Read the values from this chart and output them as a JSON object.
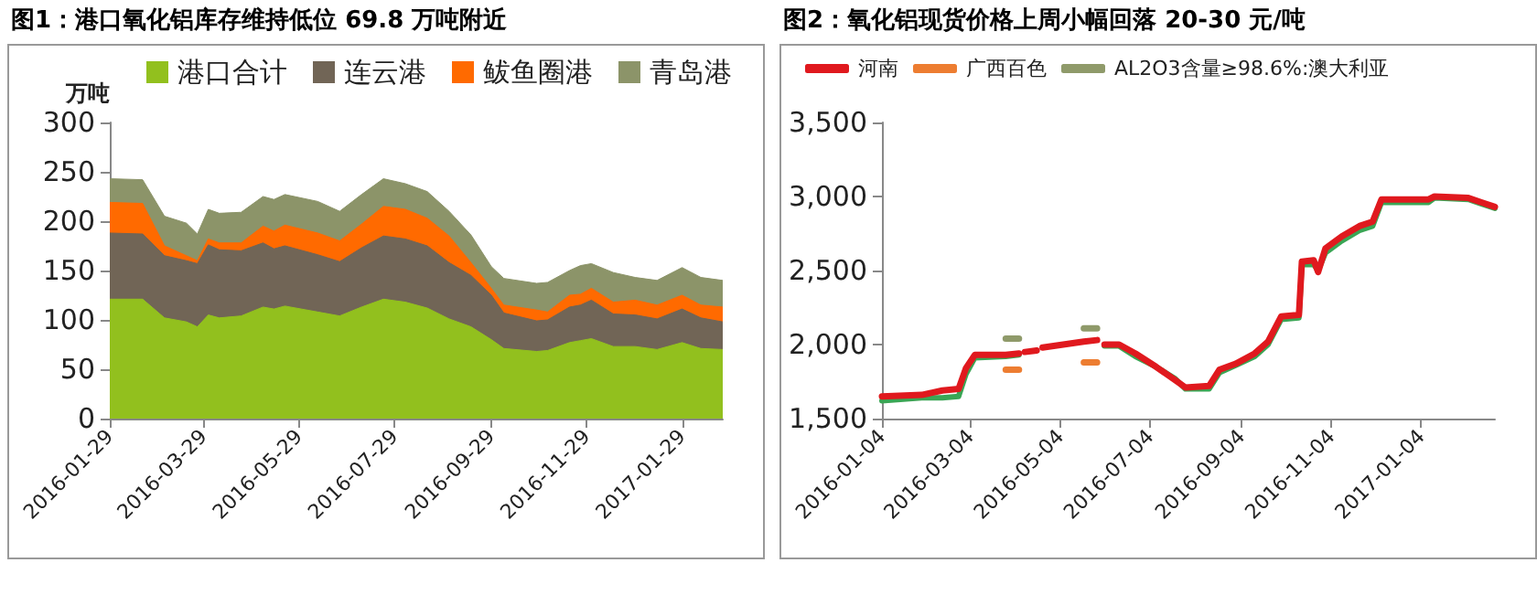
{
  "chart_data": [
    {
      "type": "area",
      "title": "图1：港口氧化铝库存维持低位 69.8 万吨附近",
      "ylabel": "万吨",
      "stacked": true,
      "legend": "top",
      "marker": "none",
      "x": [
        "2016-01-29",
        "2016-02-19",
        "2016-03-04",
        "2016-03-18",
        "2016-03-25",
        "2016-04-01",
        "2016-04-08",
        "2016-04-22",
        "2016-05-06",
        "2016-05-13",
        "2016-05-20",
        "2016-06-10",
        "2016-06-24",
        "2016-07-08",
        "2016-07-22",
        "2016-08-05",
        "2016-08-19",
        "2016-09-02",
        "2016-09-16",
        "2016-09-29",
        "2016-10-07",
        "2016-10-28",
        "2016-11-04",
        "2016-11-18",
        "2016-11-25",
        "2016-12-02",
        "2016-12-16",
        "2016-12-30",
        "2017-01-13",
        "2017-01-29",
        "2017-02-10",
        "2017-02-24"
      ],
      "xlim": [
        "2016-01-29",
        "2017-02-24"
      ],
      "xticks": [
        "2016-01-29",
        "2016-03-29",
        "2016-05-29",
        "2016-07-29",
        "2016-09-29",
        "2016-11-29",
        "2017-01-29"
      ],
      "ylim": [
        0,
        300
      ],
      "yticks": [
        0,
        50,
        100,
        150,
        200,
        250,
        300
      ],
      "series": [
        {
          "name": "港口合计",
          "color": "#92c01e",
          "values": [
            121,
            121,
            102,
            98,
            93,
            105,
            102,
            104,
            113,
            111,
            114,
            108,
            104,
            113,
            121,
            118,
            112,
            101,
            93,
            80,
            71,
            68,
            69,
            77,
            79,
            81,
            73,
            73,
            70,
            77,
            71,
            70
          ]
        },
        {
          "name": "连云港",
          "color": "#716556",
          "values": [
            67,
            66,
            63,
            62,
            64,
            71,
            69,
            66,
            65,
            61,
            61,
            58,
            55,
            60,
            64,
            64,
            63,
            57,
            52,
            45,
            36,
            31,
            31,
            36,
            36,
            39,
            33,
            32,
            31,
            34,
            31,
            28
          ]
        },
        {
          "name": "鲅鱼圈港",
          "color": "#ff6a00",
          "values": [
            31,
            31,
            10,
            5,
            3,
            6,
            7,
            8,
            17,
            18,
            21,
            22,
            21,
            24,
            30,
            30,
            28,
            27,
            13,
            7,
            8,
            11,
            8,
            12,
            11,
            12,
            12,
            15,
            14,
            14,
            13,
            15
          ]
        },
        {
          "name": "青岛港",
          "color": "#8c9469",
          "values": [
            24,
            24,
            30,
            33,
            27,
            30,
            30,
            31,
            30,
            32,
            31,
            32,
            30,
            30,
            28,
            26,
            27,
            25,
            28,
            22,
            27,
            27,
            30,
            25,
            29,
            25,
            30,
            23,
            25,
            28,
            28,
            27
          ]
        }
      ]
    },
    {
      "type": "line",
      "title": "图2：氧化铝现货价格上周小幅回落 20-30 元/吨",
      "legend": "top",
      "marker": "none",
      "x": [
        "2016-01-04",
        "2016-01-31",
        "2016-02-14",
        "2016-02-25",
        "2016-03-01",
        "2016-03-07",
        "2016-03-28",
        "2016-04-06",
        "2016-04-08",
        "2016-04-10",
        "2016-04-18",
        "2016-04-20",
        "2016-04-22",
        "2016-05-20",
        "2016-05-29",
        "2016-06-01",
        "2016-06-03",
        "2016-06-13",
        "2016-06-24",
        "2016-07-08",
        "2016-07-21",
        "2016-07-28",
        "2016-08-13",
        "2016-08-20",
        "2016-08-31",
        "2016-09-13",
        "2016-09-22",
        "2016-10-01",
        "2016-10-13",
        "2016-10-15",
        "2016-10-23",
        "2016-10-26",
        "2016-10-31",
        "2016-11-11",
        "2016-11-23",
        "2016-12-02",
        "2016-12-08",
        "2017-01-09",
        "2017-01-13",
        "2017-02-05",
        "2017-02-14",
        "2017-02-23"
      ],
      "xlim": [
        "2016-01-04",
        "2017-02-23"
      ],
      "xticks": [
        "2016-01-04",
        "2016-03-04",
        "2016-05-04",
        "2016-07-04",
        "2016-09-04",
        "2016-11-04",
        "2017-01-04"
      ],
      "ylim": [
        1500,
        3500
      ],
      "yticks": [
        {
          "value": 1500,
          "label": "1,500"
        },
        {
          "value": 2000,
          "label": "2,000"
        },
        {
          "value": 2500,
          "label": "2,500"
        },
        {
          "value": 3000,
          "label": "3,000"
        },
        {
          "value": 3500,
          "label": "3,500"
        }
      ],
      "series": [
        {
          "color": "#3aa655",
          "values": [
            1620,
            1640,
            1640,
            1650,
            1800,
            1910,
            1920,
            1930,
            null,
            null,
            null,
            null,
            null,
            null,
            null,
            null,
            1990,
            1990,
            1920,
            1850,
            1770,
            1700,
            1700,
            1810,
            1860,
            1920,
            2000,
            2170,
            2180,
            2540,
            2540,
            2500,
            2620,
            2700,
            2770,
            2800,
            2960,
            2960,
            2990,
            2980,
            2950,
            2920
          ]
        },
        {
          "name": "河南",
          "color": "#e0191e",
          "values": [
            1650,
            1660,
            1690,
            1700,
            1840,
            1930,
            1930,
            1940,
            null,
            1950,
            1960,
            null,
            1980,
            2020,
            2030,
            null,
            2000,
            2000,
            1940,
            1850,
            1760,
            1710,
            1720,
            1830,
            1870,
            1940,
            2020,
            2190,
            2200,
            2560,
            2570,
            2490,
            2650,
            2730,
            2800,
            2830,
            2980,
            2980,
            3000,
            2990,
            2960,
            2930
          ]
        },
        {
          "name": "广西百色",
          "color": "#ed7d31",
          "values": [
            null,
            null,
            null,
            null,
            null,
            null,
            1830,
            1830,
            null,
            null,
            null,
            null,
            null,
            1880,
            1880,
            null,
            null,
            null,
            null,
            null,
            null,
            null,
            null,
            null,
            null,
            null,
            null,
            null,
            null,
            null,
            null,
            null,
            null,
            null,
            null,
            null,
            null,
            null,
            null,
            null,
            null,
            null
          ]
        },
        {
          "name": "AL2O3含量≥98.6%:澳大利亚",
          "color": "#8f9a6a",
          "values": [
            null,
            null,
            null,
            null,
            null,
            null,
            2040,
            2040,
            null,
            null,
            null,
            null,
            null,
            2110,
            2110,
            null,
            null,
            null,
            null,
            null,
            null,
            null,
            null,
            null,
            null,
            null,
            null,
            null,
            null,
            null,
            null,
            null,
            null,
            null,
            null,
            null,
            null,
            null,
            null,
            null,
            null,
            null
          ]
        }
      ]
    }
  ]
}
